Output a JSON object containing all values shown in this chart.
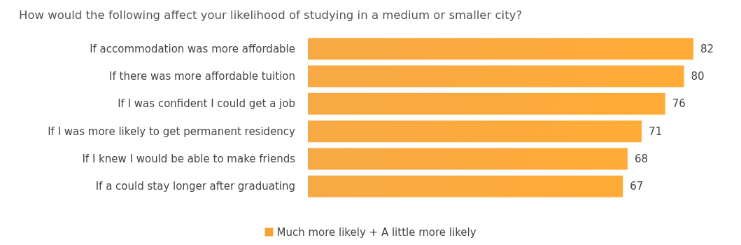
{
  "chart_data": {
    "type": "bar",
    "orientation": "horizontal",
    "title": "How would the following affect your likelihood of studying in a medium or smaller city?",
    "categories": [
      "If accommodation was more affordable",
      "If there was more affordable tuition",
      "If I was confident I could get a job",
      "If I was more likely to get permanent residency",
      "If I knew I would be able to make friends",
      "If a could stay longer after graduating"
    ],
    "series": [
      {
        "name": "Much more likely + A little more likely",
        "color": "#f7a234",
        "values": [
          82,
          80,
          76,
          71,
          68,
          67
        ]
      }
    ],
    "data_labels": true,
    "legend": "bottom"
  }
}
